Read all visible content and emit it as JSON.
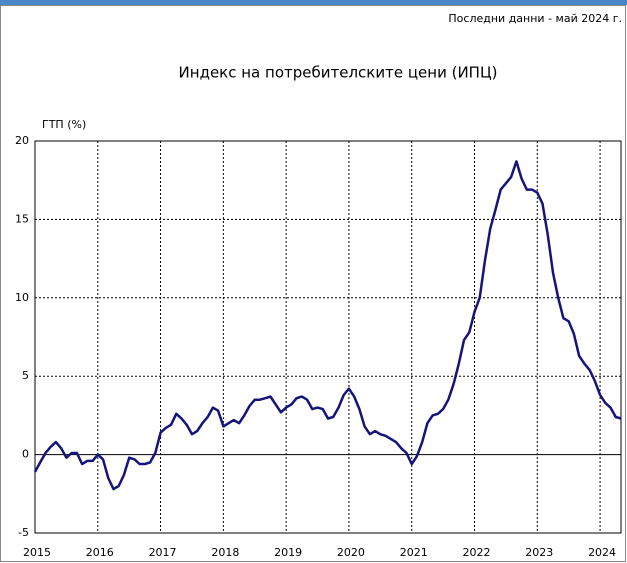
{
  "chart_data": {
    "type": "line",
    "note": "Последни данни - май 2024 г.",
    "title": "Индекс на потребителските цени (ИПЦ)",
    "ylabel": "ГТП (%)",
    "categories": [
      "2015",
      null,
      null,
      null,
      null,
      null,
      null,
      null,
      null,
      null,
      null,
      null,
      "2016",
      null,
      null,
      null,
      null,
      null,
      null,
      null,
      null,
      null,
      null,
      null,
      "2017",
      null,
      null,
      null,
      null,
      null,
      null,
      null,
      null,
      null,
      null,
      null,
      "2018",
      null,
      null,
      null,
      null,
      null,
      null,
      null,
      null,
      null,
      null,
      null,
      "2019",
      null,
      null,
      null,
      null,
      null,
      null,
      null,
      null,
      null,
      null,
      null,
      "2020",
      null,
      null,
      null,
      null,
      null,
      null,
      null,
      null,
      null,
      null,
      null,
      "2021",
      null,
      null,
      null,
      null,
      null,
      null,
      null,
      null,
      null,
      null,
      null,
      "2022",
      null,
      null,
      null,
      null,
      null,
      null,
      null,
      null,
      null,
      null,
      null,
      "2023",
      null,
      null,
      null,
      null,
      null,
      null,
      null,
      null,
      null,
      null,
      null,
      "2024",
      null,
      null,
      null,
      null
    ],
    "series": [
      {
        "color": "#14147a",
        "values": [
          -1.1,
          -0.5,
          0.1,
          0.5,
          0.8,
          0.4,
          -0.2,
          0.1,
          0.1,
          -0.6,
          -0.4,
          -0.4,
          0.0,
          -0.3,
          -1.5,
          -2.2,
          -2.0,
          -1.3,
          -0.2,
          -0.3,
          -0.6,
          -0.6,
          -0.5,
          0.1,
          1.4,
          1.7,
          1.9,
          2.6,
          2.3,
          1.9,
          1.3,
          1.5,
          2.0,
          2.4,
          3.0,
          2.8,
          1.8,
          2.0,
          2.2,
          2.0,
          2.5,
          3.1,
          3.5,
          3.5,
          3.6,
          3.7,
          3.2,
          2.7,
          3.0,
          3.2,
          3.6,
          3.7,
          3.5,
          2.9,
          3.0,
          2.9,
          2.3,
          2.4,
          3.0,
          3.8,
          4.2,
          3.7,
          2.9,
          1.8,
          1.3,
          1.5,
          1.3,
          1.2,
          1.0,
          0.8,
          0.4,
          0.1,
          -0.6,
          -0.1,
          0.8,
          2.0,
          2.5,
          2.6,
          2.9,
          3.5,
          4.5,
          5.8,
          7.3,
          7.8,
          9.1,
          10.0,
          12.4,
          14.4,
          15.6,
          16.9,
          17.3,
          17.7,
          18.7,
          17.6,
          16.9,
          16.9,
          16.7,
          16.0,
          14.0,
          11.6,
          10.0,
          8.7,
          8.5,
          7.7,
          6.3,
          5.8,
          5.4,
          4.7,
          3.8,
          3.3,
          3.0,
          2.4,
          2.3
        ]
      }
    ],
    "ylim": [
      -5,
      20
    ],
    "yticks": [
      -5,
      0,
      5,
      10,
      15,
      20
    ],
    "grid": true
  }
}
